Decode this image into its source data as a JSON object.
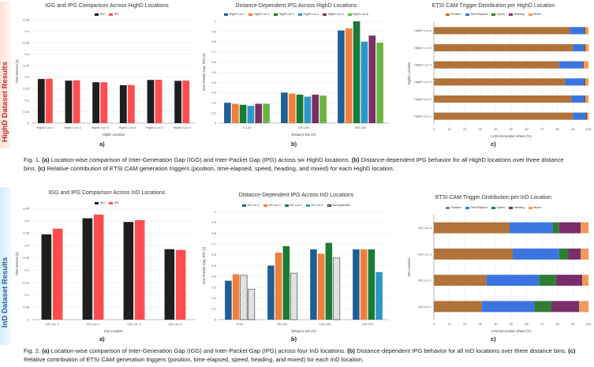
{
  "colors": {
    "igg": "#1f1f1f",
    "ipg": "#ff4d4f",
    "band1": "#fde0d6",
    "band2": "#d4ecf9",
    "loc1": "#1f5f95",
    "loc2": "#ef7f3a",
    "loc3": "#1b7a36",
    "loc4": "#2e96c9",
    "loc5": "#7b2e63",
    "loc6": "#6ab541",
    "position": "#b17339",
    "time_elapsed": "#3b75e2",
    "speed": "#2e7d32",
    "heading": "#7a2d6b",
    "mixed": "#ef9a58"
  },
  "rows": [
    {
      "band_label": "HighD Dataset Results",
      "subs": [
        "a)",
        "b)",
        "c)"
      ],
      "caption": {
        "fig": "Fig. 1.",
        "a": "(a)",
        "a_text": " Location-wise comparison of Inter-Generation Gap (IGG) and Inter-Packet Gap (IPG) across six HighD locations. ",
        "b": "(b)",
        "b_text": " Distance-dependent IPG behavior for all HighD locations over three distance bins. ",
        "c": "(c)",
        "c_text": " Relative contribution of ETSI CAM generation triggers (position, time-elapsed, speed, heading, and mixed) for each HighD location."
      },
      "charts": [
        {
          "type": "bar",
          "title": "IGG and IPG Comparison Across HighD Locations",
          "legend": [
            "IGG",
            "IPG"
          ],
          "categories": [
            "HighD Loc 1",
            "HighD Loc 2",
            "HighD Loc 3",
            "HighD Loc 4",
            "HighD Loc 5",
            "HighD Loc 6"
          ],
          "series": [
            {
              "name": "IGG",
              "values": [
                0.192,
                0.185,
                0.178,
                0.165,
                0.188,
                0.184
              ]
            },
            {
              "name": "IPG",
              "values": [
                0.193,
                0.186,
                0.178,
                0.166,
                0.189,
                0.185
              ]
            }
          ],
          "yticks": [
            "0",
            "0.05",
            "0.1",
            "0.15",
            "0.2",
            "0.25",
            "0.3",
            "0.35",
            "0.4",
            "0.45"
          ],
          "ylim": [
            0,
            0.45
          ],
          "xlabel": "HighD Location",
          "ylabel": "Time Interval (s)"
        },
        {
          "type": "bar",
          "title": "Distance-Dependent IPG Across HighD Locations",
          "legend": [
            "HighD Loc 1",
            "HighD Loc 2",
            "HighD Loc 3",
            "HighD Loc 4",
            "HighD Loc 5",
            "HighD Loc 6"
          ],
          "categories": [
            "0-100",
            "100-200",
            "200-300"
          ],
          "series": [
            {
              "name": "HighD Loc 1",
              "values": [
                0.2,
                0.3,
                0.91
              ]
            },
            {
              "name": "HighD Loc 2",
              "values": [
                0.19,
                0.29,
                0.93
              ]
            },
            {
              "name": "HighD Loc 3",
              "values": [
                0.18,
                0.28,
                1.0
              ]
            },
            {
              "name": "HighD Loc 4",
              "values": [
                0.17,
                0.26,
                0.8
              ]
            },
            {
              "name": "HighD Loc 5",
              "values": [
                0.19,
                0.28,
                0.86
              ]
            },
            {
              "name": "HighD Loc 6",
              "values": [
                0.19,
                0.27,
                0.79
              ]
            }
          ],
          "yticks": [
            "0",
            "0.1",
            "0.2",
            "0.3",
            "0.4",
            "0.5",
            "0.6",
            "0.7",
            "0.8",
            "0.9",
            "1"
          ],
          "ylim": [
            0,
            1.0
          ],
          "xlabel": "Distance Bin (m)",
          "ylabel": "Inter-Packet Gap, IPG (s)"
        },
        {
          "type": "stacked-bar-horizontal",
          "title": "ETSI CAM Trigger Distribution per HighD Location",
          "legend": [
            "Position",
            "Time Elapsed",
            "Speed",
            "Heading",
            "Mixed"
          ],
          "categories": [
            "HighD Loc 6",
            "HighD Loc 5",
            "HighD Loc 4",
            "HighD Loc 3",
            "HighD Loc 2",
            "HighD Loc 1"
          ],
          "series": [
            {
              "name": "Position",
              "values": [
                88,
                90,
                81,
                85,
                89,
                90
              ]
            },
            {
              "name": "Time Elapsed",
              "values": [
                9,
                7,
                15,
                12,
                8,
                8
              ]
            },
            {
              "name": "Speed",
              "values": [
                0.5,
                0.5,
                0.5,
                0.5,
                0.5,
                0.5
              ]
            },
            {
              "name": "Heading",
              "values": [
                0.5,
                0.5,
                0.5,
                0.5,
                0.5,
                0.5
              ]
            },
            {
              "name": "Mixed",
              "values": [
                2,
                2,
                3,
                2,
                2,
                1
              ]
            }
          ],
          "xticks": [
            "0",
            "10",
            "20",
            "30",
            "40",
            "50",
            "60",
            "70",
            "80",
            "90",
            "100"
          ],
          "xlim": [
            0,
            100
          ],
          "xlabel": "CAM Generation Share (%)",
          "ylabel": "HighD Location"
        }
      ]
    },
    {
      "band_label": "InD Dataset Results",
      "subs": [
        "a)",
        "b)",
        "c)"
      ],
      "caption": {
        "fig": "Fig. 2.",
        "a": "(a)",
        "a_text": " Location-wise comparison of Inter-Generation Gap (IGG) and Inter-Packet Gap (IPG) across four InD locations. ",
        "b": "(b)",
        "b_text": " Distance-dependent IPG behavior for all InD locations over three distance bins. ",
        "c": "(c)",
        "c_text": " Relative contribution of ETSI CAM generation triggers (position, time-elapsed, speed, heading, and mixed) for each InD location."
      },
      "charts": [
        {
          "type": "bar",
          "title": "IGG and IPG Comparison Across InD Locations",
          "legend": [
            "IGG",
            "IPG"
          ],
          "categories": [
            "InD Loc 1",
            "InD Loc 2",
            "InD Loc 3",
            "InD Loc 4"
          ],
          "series": [
            {
              "name": "IGG",
              "values": [
                0.345,
                0.41,
                0.395,
                0.285
              ]
            },
            {
              "name": "IPG",
              "values": [
                0.368,
                0.425,
                0.402,
                0.282
              ]
            }
          ],
          "yticks": [
            "0",
            "0.05",
            "0.1",
            "0.15",
            "0.2",
            "0.25",
            "0.3",
            "0.35",
            "0.4",
            "0.45"
          ],
          "ylim": [
            0,
            0.45
          ],
          "xlabel": "InD Location",
          "ylabel": "Time Interval (s)"
        },
        {
          "type": "bar",
          "title": "Distance-Dependent IPG Across InD Locations",
          "legend": [
            "InD Loc 1",
            "InD Loc 2",
            "InD Loc 3",
            "InD Loc 4",
            "Not Applicable"
          ],
          "categories": [
            "0-50",
            "50-100",
            "100-150",
            "150-200"
          ],
          "series": [
            {
              "name": "InD Loc 1",
              "values": [
                0.36,
                0.5,
                0.65,
                0.65
              ]
            },
            {
              "name": "InD Loc 2",
              "values": [
                0.42,
                0.62,
                0.61,
                0.65
              ]
            },
            {
              "name": "InD Loc 3",
              "values": [
                0.41,
                0.68,
                0.71,
                0.65
              ]
            },
            {
              "name": "InD Loc 4",
              "values": [
                0.28,
                0.43,
                0.57,
                0.44
              ]
            }
          ],
          "not_applicable": [
            [
              false,
              false,
              false,
              false
            ],
            [
              false,
              false,
              false,
              false
            ],
            [
              true,
              false,
              false,
              false
            ],
            [
              true,
              true,
              true,
              false
            ]
          ],
          "yticks": [
            "0",
            "0.1",
            "0.2",
            "0.3",
            "0.4",
            "0.5",
            "0.6",
            "0.7",
            "0.8",
            "0.9",
            "1"
          ],
          "ylim": [
            0,
            1.0
          ],
          "xlabel": "Distance Bin (m)",
          "ylabel": "Inter-Packet Gap, IPG (s)"
        },
        {
          "type": "stacked-bar-horizontal",
          "title": "ETSI CAM Trigger Distribution per InD Location",
          "legend": [
            "Position",
            "Time Elapsed",
            "Speed",
            "Heading",
            "Mixed"
          ],
          "categories": [
            "InD Loc 4",
            "InD Loc 3",
            "InD Loc 2",
            "InD Loc 1"
          ],
          "series": [
            {
              "name": "Position",
              "values": [
                49,
                51,
                34,
                31
              ]
            },
            {
              "name": "Time Elapsed",
              "values": [
                28,
                30,
                34,
                34
              ]
            },
            {
              "name": "Speed",
              "values": [
                4,
                6,
                11,
                11
              ]
            },
            {
              "name": "Heading",
              "values": [
                14,
                8,
                17,
                18
              ]
            },
            {
              "name": "Mixed",
              "values": [
                5,
                5,
                4,
                6
              ]
            }
          ],
          "xticks": [
            "0",
            "10",
            "20",
            "30",
            "40",
            "50",
            "60",
            "70",
            "80",
            "90",
            "100"
          ],
          "xlim": [
            0,
            100
          ],
          "xlabel": "CAM Generation Share (%)",
          "ylabel": "InD Location"
        }
      ]
    }
  ]
}
